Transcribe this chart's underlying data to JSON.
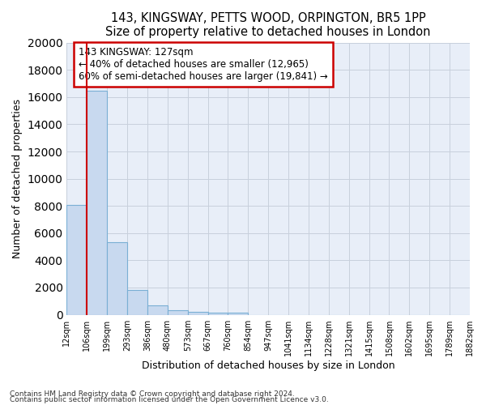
{
  "title1": "143, KINGSWAY, PETTS WOOD, ORPINGTON, BR5 1PP",
  "title2": "Size of property relative to detached houses in London",
  "xlabel": "Distribution of detached houses by size in London",
  "ylabel": "Number of detached properties",
  "bar_values": [
    8050,
    16500,
    5350,
    1800,
    700,
    320,
    200,
    180,
    130,
    0,
    0,
    0,
    0,
    0,
    0,
    0,
    0,
    0,
    0,
    0
  ],
  "tick_labels": [
    "12sqm",
    "106sqm",
    "199sqm",
    "293sqm",
    "386sqm",
    "480sqm",
    "573sqm",
    "667sqm",
    "760sqm",
    "854sqm",
    "947sqm",
    "1041sqm",
    "1134sqm",
    "1228sqm",
    "1321sqm",
    "1415sqm",
    "1508sqm",
    "1602sqm",
    "1695sqm",
    "1789sqm",
    "1882sqm"
  ],
  "bar_color": "#c8d9ef",
  "bar_edgecolor": "#7aafd4",
  "vline_color": "#cc0000",
  "annotation_text": "143 KINGSWAY: 127sqm\n← 40% of detached houses are smaller (12,965)\n60% of semi-detached houses are larger (19,841) →",
  "annotation_box_edgecolor": "#cc0000",
  "annotation_fontsize": 8.5,
  "ylim": [
    0,
    20000
  ],
  "yticks": [
    0,
    2000,
    4000,
    6000,
    8000,
    10000,
    12000,
    14000,
    16000,
    18000,
    20000
  ],
  "grid_color": "#c8d0dc",
  "bg_color": "#e8eef8",
  "title1_fontsize": 10.5,
  "title2_fontsize": 9.5,
  "footnote1": "Contains HM Land Registry data © Crown copyright and database right 2024.",
  "footnote2": "Contains public sector information licensed under the Open Government Licence v3.0."
}
